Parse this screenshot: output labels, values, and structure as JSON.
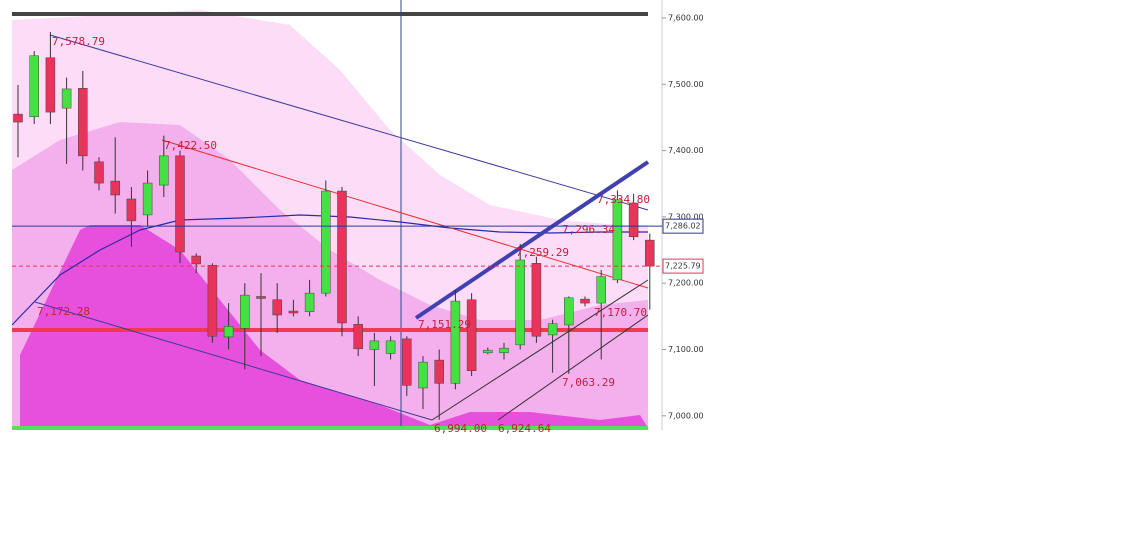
{
  "chart_data": {
    "type": "candlestick",
    "up_color": "#44e044",
    "down_color": "#e8335a",
    "ylim": [
      6978.6,
      7627.1
    ],
    "yticks": [
      {
        "value": 7600,
        "label": "7,600.00"
      },
      {
        "value": 7500,
        "label": "7,500.00"
      },
      {
        "value": 7400,
        "label": "7,400.00"
      },
      {
        "value": 7300,
        "label": "7,300.00"
      },
      {
        "value": 7200,
        "label": "7,200.00"
      },
      {
        "value": 7100,
        "label": "7,100.00"
      },
      {
        "value": 7000,
        "label": "7,000.00"
      }
    ],
    "price_markers": [
      {
        "value": 7286.02,
        "label": "7,286.02",
        "color": "#2a3a9a"
      },
      {
        "value": 7225.79,
        "label": "7,225.79",
        "color": "#e8335a"
      }
    ],
    "annotations": [
      "7,578.79",
      "7,422.50",
      "7,172.28",
      "7,151.29",
      "7,259.29",
      "7,296.34",
      "7,334.80",
      "7,170.70",
      "7,063.29",
      "6,994.00",
      "6,924.64"
    ],
    "open": [
      7455,
      7451,
      7540,
      7464,
      7494,
      7383,
      7354,
      7327,
      7303,
      7348,
      7392,
      7241,
      7227,
      7119,
      7132,
      7180,
      7175,
      7158,
      7157,
      7185,
      7339,
      7138,
      7100,
      7094,
      7116,
      7042,
      7084,
      7049,
      7175,
      7095,
      7095,
      7107,
      7230,
      7122,
      7137,
      7176,
      7170,
      7205,
      7321,
      7265
    ],
    "high": [
      7499,
      7550,
      7578.79,
      7510,
      7520,
      7390,
      7420,
      7345,
      7370,
      7422.5,
      7400,
      7245,
      7230,
      7170,
      7200,
      7215,
      7200,
      7175,
      7205,
      7355,
      7345,
      7150,
      7125,
      7120,
      7120,
      7090,
      7100,
      7190,
      7185,
      7103,
      7110,
      7259.29,
      7240,
      7145,
      7180,
      7180,
      7220,
      7340,
      7335,
      7275
    ],
    "low": [
      7390,
      7440,
      7440,
      7380,
      7370,
      7340,
      7305,
      7255,
      7285,
      7330,
      7230,
      7215,
      7110,
      7100,
      7070,
      7090,
      7125,
      7150,
      7150,
      7180,
      7120,
      7090,
      7045,
      7085,
      7030,
      7010,
      6994,
      7040,
      7060,
      7093,
      7085,
      7100,
      7110,
      7065,
      7063.29,
      7165,
      7085,
      7200,
      7265,
      7160
    ],
    "close": [
      7443,
      7543,
      7458,
      7493,
      7392,
      7351,
      7333,
      7294,
      7351,
      7392,
      7247,
      7229,
      7120,
      7135,
      7182,
      7179,
      7152,
      7157,
      7185,
      7339,
      7140,
      7101,
      7113,
      7113,
      7046,
      7081,
      7049,
      7173,
      7068,
      7099,
      7102,
      7235,
      7120,
      7139,
      7178,
      7170,
      7210,
      7326,
      7270,
      7225.79
    ]
  }
}
